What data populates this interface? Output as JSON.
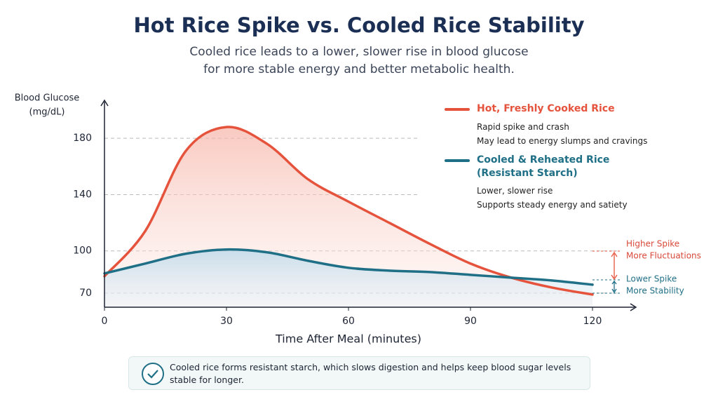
{
  "chart_data": {
    "type": "line",
    "title": "Hot Rice Spike vs. Cooled Rice Stability",
    "subtitle": [
      "Cooled rice leads to a lower, slower rise in blood glucose",
      "for more stable energy and better metabolic health."
    ],
    "y_label": [
      "Blood Glucose",
      "(mg/dL)"
    ],
    "x_label": "Time After Meal (minutes)",
    "x": [
      0,
      10,
      20,
      30,
      40,
      50,
      60,
      70,
      80,
      90,
      100,
      110,
      120
    ],
    "series": [
      {
        "name": "Hot, Freshly Cooked Rice",
        "color": "#e5533d",
        "description": [
          "Rapid spike and crash",
          "May lead to energy slumps and cravings"
        ],
        "values": [
          82,
          114,
          171,
          188,
          176,
          151,
          135,
          120,
          105,
          91,
          81,
          74,
          69
        ]
      },
      {
        "name": "Cooled & Reheated Rice (Resistant Starch)",
        "color": "#1f6f86",
        "description": [
          "Lower, slower rise",
          "Supports steady energy and satiety"
        ],
        "values": [
          84,
          91,
          98,
          101,
          99,
          93,
          88,
          86,
          85,
          83,
          81,
          79,
          76
        ]
      }
    ],
    "xlim": [
      0,
      130
    ],
    "xticks": [
      0,
      30,
      60,
      90,
      120
    ],
    "ylim": [
      60,
      205
    ],
    "yticks": [
      70,
      100,
      140,
      180
    ],
    "grid": true,
    "annotations": [
      "Higher Spike",
      "More Fluctuations",
      "Lower Spike",
      "More Stability"
    ],
    "note": "Cooled rice forms resistant starch, which slows digestion and helps keep blood sugar levels stable for longer."
  }
}
